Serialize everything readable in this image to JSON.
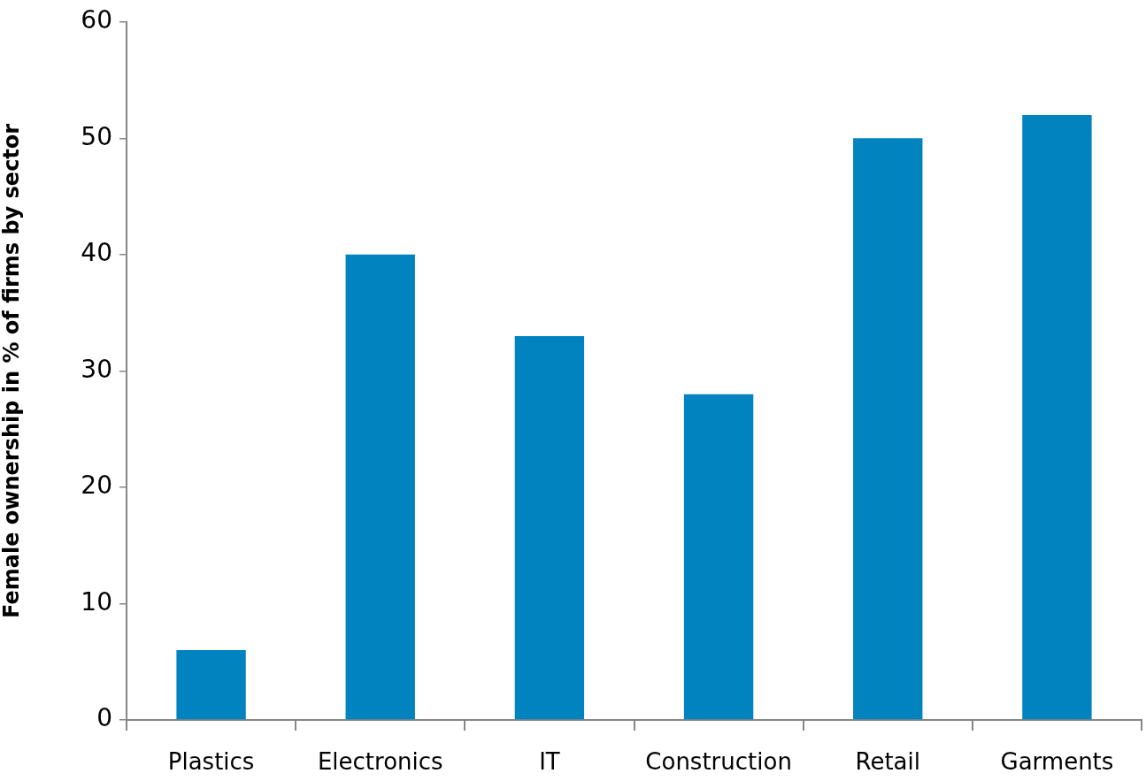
{
  "chart_data": {
    "type": "bar",
    "ylabel": "Female ownership in % of firms by sector",
    "categories": [
      "Plastics",
      "Electronics",
      "IT",
      "Construction",
      "Retail",
      "Garments"
    ],
    "values": [
      6,
      40,
      33,
      28,
      50,
      52
    ],
    "color": "#0083bf",
    "ylim": [
      0,
      60
    ],
    "yticks": [
      0,
      10,
      20,
      30,
      40,
      50,
      60
    ]
  }
}
